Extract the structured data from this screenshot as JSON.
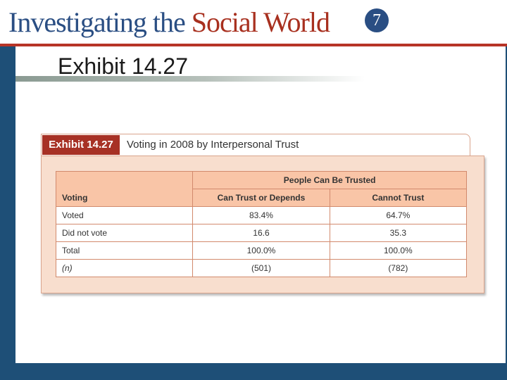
{
  "header": {
    "brand_part1": "Investigating the ",
    "brand_part2": "Social World",
    "edition": "7"
  },
  "slide": {
    "title": "Exhibit 14.27"
  },
  "exhibit": {
    "label": "Exhibit 14.27",
    "caption": "Voting in 2008 by Interpersonal Trust",
    "table": {
      "group_header": "People Can Be Trusted",
      "row_header": "Voting",
      "columns": [
        "Can Trust or Depends",
        "Cannot Trust"
      ],
      "rows": [
        {
          "label": "Voted",
          "values": [
            "83.4%",
            "64.7%"
          ]
        },
        {
          "label": "Did not vote",
          "values": [
            "16.6",
            "35.3"
          ]
        },
        {
          "label": "Total",
          "values": [
            "100.0%",
            "100.0%"
          ]
        },
        {
          "label": "(n)",
          "values": [
            "(501)",
            "(782)"
          ]
        }
      ]
    }
  },
  "colors": {
    "brand_blue": "#2a4e83",
    "brand_red": "#a8301f",
    "frame_blue": "#1e4f77",
    "label_red": "#a73125",
    "table_header": "#f9c5a7"
  }
}
